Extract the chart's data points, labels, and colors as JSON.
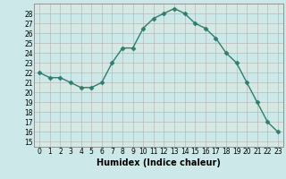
{
  "xlabel": "Humidex (Indice chaleur)",
  "ylabel": "",
  "x": [
    0,
    1,
    2,
    3,
    4,
    5,
    6,
    7,
    8,
    9,
    10,
    11,
    12,
    13,
    14,
    15,
    16,
    17,
    18,
    19,
    20,
    21,
    22,
    23
  ],
  "y": [
    22.0,
    21.5,
    21.5,
    21.0,
    20.5,
    20.5,
    21.0,
    23.0,
    24.5,
    24.5,
    26.5,
    27.5,
    28.0,
    28.5,
    28.0,
    27.0,
    26.5,
    25.5,
    24.0,
    23.0,
    21.0,
    19.0,
    17.0,
    16.0
  ],
  "ylim": [
    14.5,
    29.0
  ],
  "yticks": [
    15,
    16,
    17,
    18,
    19,
    20,
    21,
    22,
    23,
    24,
    25,
    26,
    27,
    28
  ],
  "xlim": [
    -0.5,
    23.5
  ],
  "line_color": "#2e7d6e",
  "marker": "D",
  "markersize": 2.5,
  "bg_color": "#cce8e8",
  "grid_color": "#b0b0b0",
  "axis_fontsize": 6.5,
  "tick_fontsize": 5.5,
  "xlabel_fontsize": 7.0
}
